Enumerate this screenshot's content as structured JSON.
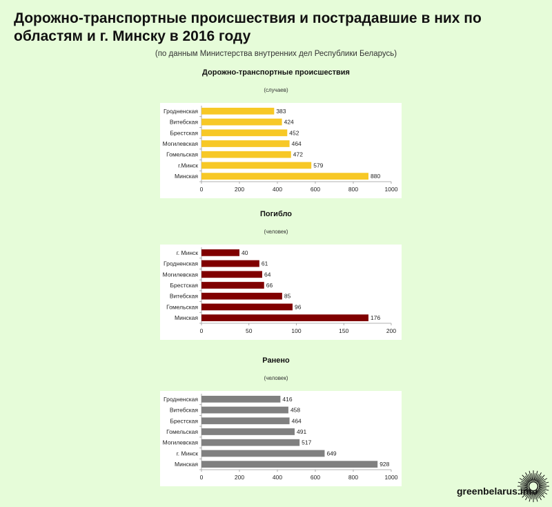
{
  "title": "Дорожно-транспортные происшествия и пострадавшие в них по областям и г. Минску в 2016 году",
  "subtitle": "(по данным Министерства внутренних дел Республики Беларусь)",
  "watermark": "greenbelarus.info",
  "chart_data": [
    {
      "type": "bar",
      "orientation": "horizontal",
      "title": "Дорожно-транспортные происшествия",
      "unit": "(случаев)",
      "categories": [
        "Гродненская",
        "Витебская",
        "Брестская",
        "Могилевская",
        "Гомельская",
        "г.Минск",
        "Минская"
      ],
      "values": [
        383,
        424,
        452,
        464,
        472,
        579,
        880
      ],
      "xlim": [
        0,
        1000
      ],
      "ticks": [
        0,
        200,
        400,
        600,
        800,
        1000
      ],
      "color": "#f7c826"
    },
    {
      "type": "bar",
      "orientation": "horizontal",
      "title": "Погибло",
      "unit": "(человек)",
      "categories": [
        "г. Минск",
        "Гродненская",
        "Могилевская",
        "Брестская",
        "Витебская",
        "Гомельская",
        "Минская"
      ],
      "values": [
        40,
        61,
        64,
        66,
        85,
        96,
        176
      ],
      "xlim": [
        0,
        200
      ],
      "ticks": [
        0,
        50,
        100,
        150,
        200
      ],
      "color": "#800000"
    },
    {
      "type": "bar",
      "orientation": "horizontal",
      "title": "Ранено",
      "unit": "(человек)",
      "categories": [
        "Гродненская",
        "Витебская",
        "Брестская",
        "Гомельская",
        "Могилевская",
        "г. Минск",
        "Минская"
      ],
      "values": [
        416,
        458,
        464,
        491,
        517,
        649,
        928
      ],
      "xlim": [
        0,
        1000
      ],
      "ticks": [
        0,
        200,
        400,
        600,
        800,
        1000
      ],
      "color": "#808080"
    }
  ]
}
